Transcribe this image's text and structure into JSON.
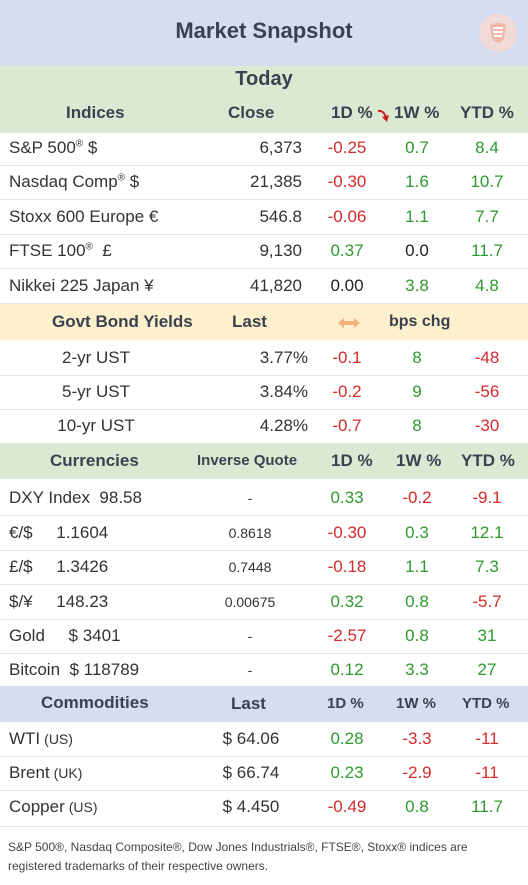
{
  "title": "Market Snapshot",
  "today_label": "Today",
  "indices": {
    "headers": {
      "name": "Indices",
      "close": "Close",
      "d1": "1D %",
      "w1": "1W %",
      "ytd": "YTD %"
    },
    "rows": [
      {
        "name": "S&P 500",
        "sup": "®",
        "suffix": " $",
        "close": "6,373",
        "d1": "-0.25",
        "w1": "0.7",
        "ytd": "8.4"
      },
      {
        "name": "Nasdaq Comp",
        "sup": "®",
        "suffix": " $",
        "close": "21,385",
        "d1": "-0.30",
        "w1": "1.6",
        "ytd": "10.7"
      },
      {
        "name": "Stoxx 600 Europe  €",
        "sup": "",
        "suffix": "",
        "close": "546.8",
        "d1": "-0.06",
        "w1": "1.1",
        "ytd": "7.7"
      },
      {
        "name": "FTSE 100",
        "sup": "®",
        "suffix": "  £",
        "close": "9,130",
        "d1": "0.37",
        "w1": "0.0",
        "ytd": "11.7"
      },
      {
        "name": "Nikkei 225 Japan ¥",
        "sup": "",
        "suffix": "",
        "close": "41,820",
        "d1": "0.00",
        "w1": "3.8",
        "ytd": "4.8"
      }
    ]
  },
  "bonds": {
    "headers": {
      "name": "Govt Bond Yields",
      "last": "Last",
      "chg": "bps chg"
    },
    "rows": [
      {
        "name": "2-yr UST",
        "last": "3.77%",
        "d1": "-0.1",
        "w1": "8",
        "ytd": "-48"
      },
      {
        "name": "5-yr UST",
        "last": "3.84%",
        "d1": "-0.2",
        "w1": "9",
        "ytd": "-56"
      },
      {
        "name": "10-yr UST",
        "last": "4.28%",
        "d1": "-0.7",
        "w1": "8",
        "ytd": "-30"
      }
    ]
  },
  "currencies": {
    "headers": {
      "name": "Currencies",
      "inverse": "Inverse Quote",
      "d1": "1D %",
      "w1": "1W %",
      "ytd": "YTD %"
    },
    "rows": [
      {
        "name": "DXY Index  98.58",
        "inverse": "-",
        "d1": "0.33",
        "w1": "-0.2",
        "ytd": "-9.1"
      },
      {
        "name": "€/$     1.1604",
        "inverse": "0.8618",
        "d1": "-0.30",
        "w1": "0.3",
        "ytd": "12.1"
      },
      {
        "name": "£/$     1.3426",
        "inverse": "0.7448",
        "d1": "-0.18",
        "w1": "1.1",
        "ytd": "7.3"
      },
      {
        "name": "$/¥     148.23",
        "inverse": "0.00675",
        "d1": "0.32",
        "w1": "0.8",
        "ytd": "-5.7"
      },
      {
        "name": "Gold     $ 3401",
        "inverse": "-",
        "d1": "-2.57",
        "w1": "0.8",
        "ytd": "31"
      },
      {
        "name": "Bitcoin  $ 118789",
        "inverse": "-",
        "d1": "0.12",
        "w1": "3.3",
        "ytd": "27"
      }
    ]
  },
  "commodities": {
    "headers": {
      "name": "Commodities",
      "last": "Last",
      "d1": "1D %",
      "w1": "1W %",
      "ytd": "YTD %"
    },
    "rows": [
      {
        "name": "WTI",
        "region": "(US)",
        "last": "$ 64.06",
        "d1": "0.28",
        "w1": "-3.3",
        "ytd": "-11"
      },
      {
        "name": "Brent",
        "region": "(UK)",
        "last": "$ 66.74",
        "d1": "0.23",
        "w1": "-2.9",
        "ytd": "-11"
      },
      {
        "name": "Copper",
        "region": "(US)",
        "last": "$ 4.450",
        "d1": "-0.49",
        "w1": "0.8",
        "ytd": "11.7"
      }
    ]
  },
  "footer": "S&P 500®, Nasdaq Composite®, Dow Jones Industrials®, FTSE®, Stoxx® indices are registered trademarks of their respective owners.",
  "colors": {
    "positive": "#2e9a2e",
    "negative": "#d42b2b",
    "header_blue": "#d6ddf1",
    "header_green": "#dbe9d3",
    "header_yellow": "#fdf0cc"
  },
  "icons": {
    "logo": "shield-logo-icon",
    "sort": "curved-arrow-down-icon",
    "swap": "double-arrow-icon"
  }
}
